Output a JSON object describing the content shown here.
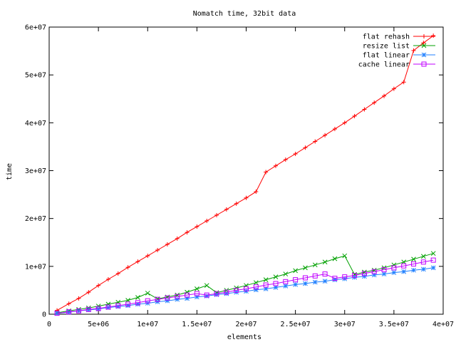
{
  "chart_data": {
    "type": "line",
    "title": "Nomatch time, 32bit data",
    "xlabel": "elements",
    "ylabel": "time",
    "xlim": [
      0,
      40000000
    ],
    "ylim": [
      0,
      60000000
    ],
    "x_ticks": [
      0,
      5000000,
      10000000,
      15000000,
      20000000,
      25000000,
      30000000,
      35000000,
      40000000
    ],
    "x_tick_labels": [
      "0",
      "5e+06",
      "1e+07",
      "1.5e+07",
      "2e+07",
      "2.5e+07",
      "3e+07",
      "3.5e+07",
      "4e+07"
    ],
    "y_ticks": [
      0,
      10000000,
      20000000,
      30000000,
      40000000,
      50000000,
      60000000
    ],
    "y_tick_labels": [
      "0",
      "1e+07",
      "2e+07",
      "3e+07",
      "4e+07",
      "5e+07",
      "6e+07"
    ],
    "legend_position": "top-right",
    "grid": false,
    "x": [
      800000,
      2000000,
      3000000,
      4000000,
      5000000,
      6000000,
      7000000,
      8000000,
      9000000,
      10000000,
      11000000,
      12000000,
      13000000,
      14000000,
      15000000,
      16000000,
      17000000,
      18000000,
      19000000,
      20000000,
      21000000,
      22000000,
      23000000,
      24000000,
      25000000,
      26000000,
      27000000,
      28000000,
      29000000,
      30000000,
      31000000,
      32000000,
      33000000,
      34000000,
      35000000,
      36000000,
      37000000,
      38000000,
      39000000
    ],
    "series": [
      {
        "name": "flat rehash",
        "color": "#ff0000",
        "marker": "plus",
        "values": [
          800000,
          2200000,
          3300000,
          4600000,
          6000000,
          7300000,
          8500000,
          9800000,
          11000000,
          12200000,
          13400000,
          14600000,
          15800000,
          17100000,
          18300000,
          19500000,
          20700000,
          21900000,
          23100000,
          24300000,
          25600000,
          29700000,
          31000000,
          32300000,
          33500000,
          34800000,
          36100000,
          37400000,
          38700000,
          40000000,
          41400000,
          42800000,
          44200000,
          45600000,
          47100000,
          48500000,
          55100000,
          56700000,
          58200000
        ]
      },
      {
        "name": "resize list",
        "color": "#00a000",
        "marker": "cross",
        "values": [
          300000,
          700000,
          1000000,
          1300000,
          1700000,
          2100000,
          2500000,
          2900000,
          3500000,
          4400000,
          3200000,
          3600000,
          4000000,
          4600000,
          5300000,
          6000000,
          4500000,
          5000000,
          5500000,
          6000000,
          6600000,
          7200000,
          7800000,
          8400000,
          9100000,
          9700000,
          10300000,
          10900000,
          11600000,
          12200000,
          8300000,
          8800000,
          9200000,
          9700000,
          10300000,
          10900000,
          11500000,
          12100000,
          12700000
        ]
      },
      {
        "name": "flat linear",
        "color": "#2080ff",
        "marker": "star",
        "values": [
          200000,
          400000,
          700000,
          900000,
          1100000,
          1400000,
          1600000,
          1800000,
          2100000,
          2300000,
          2600000,
          2800000,
          3100000,
          3300000,
          3600000,
          3800000,
          4100000,
          4300000,
          4600000,
          4800000,
          5100000,
          5300000,
          5600000,
          5900000,
          6200000,
          6400000,
          6700000,
          6900000,
          7200000,
          7400000,
          7700000,
          7900000,
          8200000,
          8400000,
          8700000,
          8900000,
          9200000,
          9400000,
          9700000
        ]
      },
      {
        "name": "cache linear",
        "color": "#c000ff",
        "marker": "square",
        "values": [
          200000,
          500000,
          700000,
          1000000,
          1200000,
          1500000,
          1800000,
          2100000,
          2400000,
          2800000,
          3100000,
          3400000,
          3700000,
          4000000,
          4300000,
          4000000,
          4300000,
          4600000,
          5000000,
          5300000,
          5700000,
          6100000,
          6400000,
          6800000,
          7200000,
          7600000,
          8000000,
          8400000,
          7500000,
          7800000,
          8100000,
          8500000,
          8900000,
          9300000,
          9700000,
          10100000,
          10500000,
          10900000,
          11300000
        ]
      }
    ]
  }
}
